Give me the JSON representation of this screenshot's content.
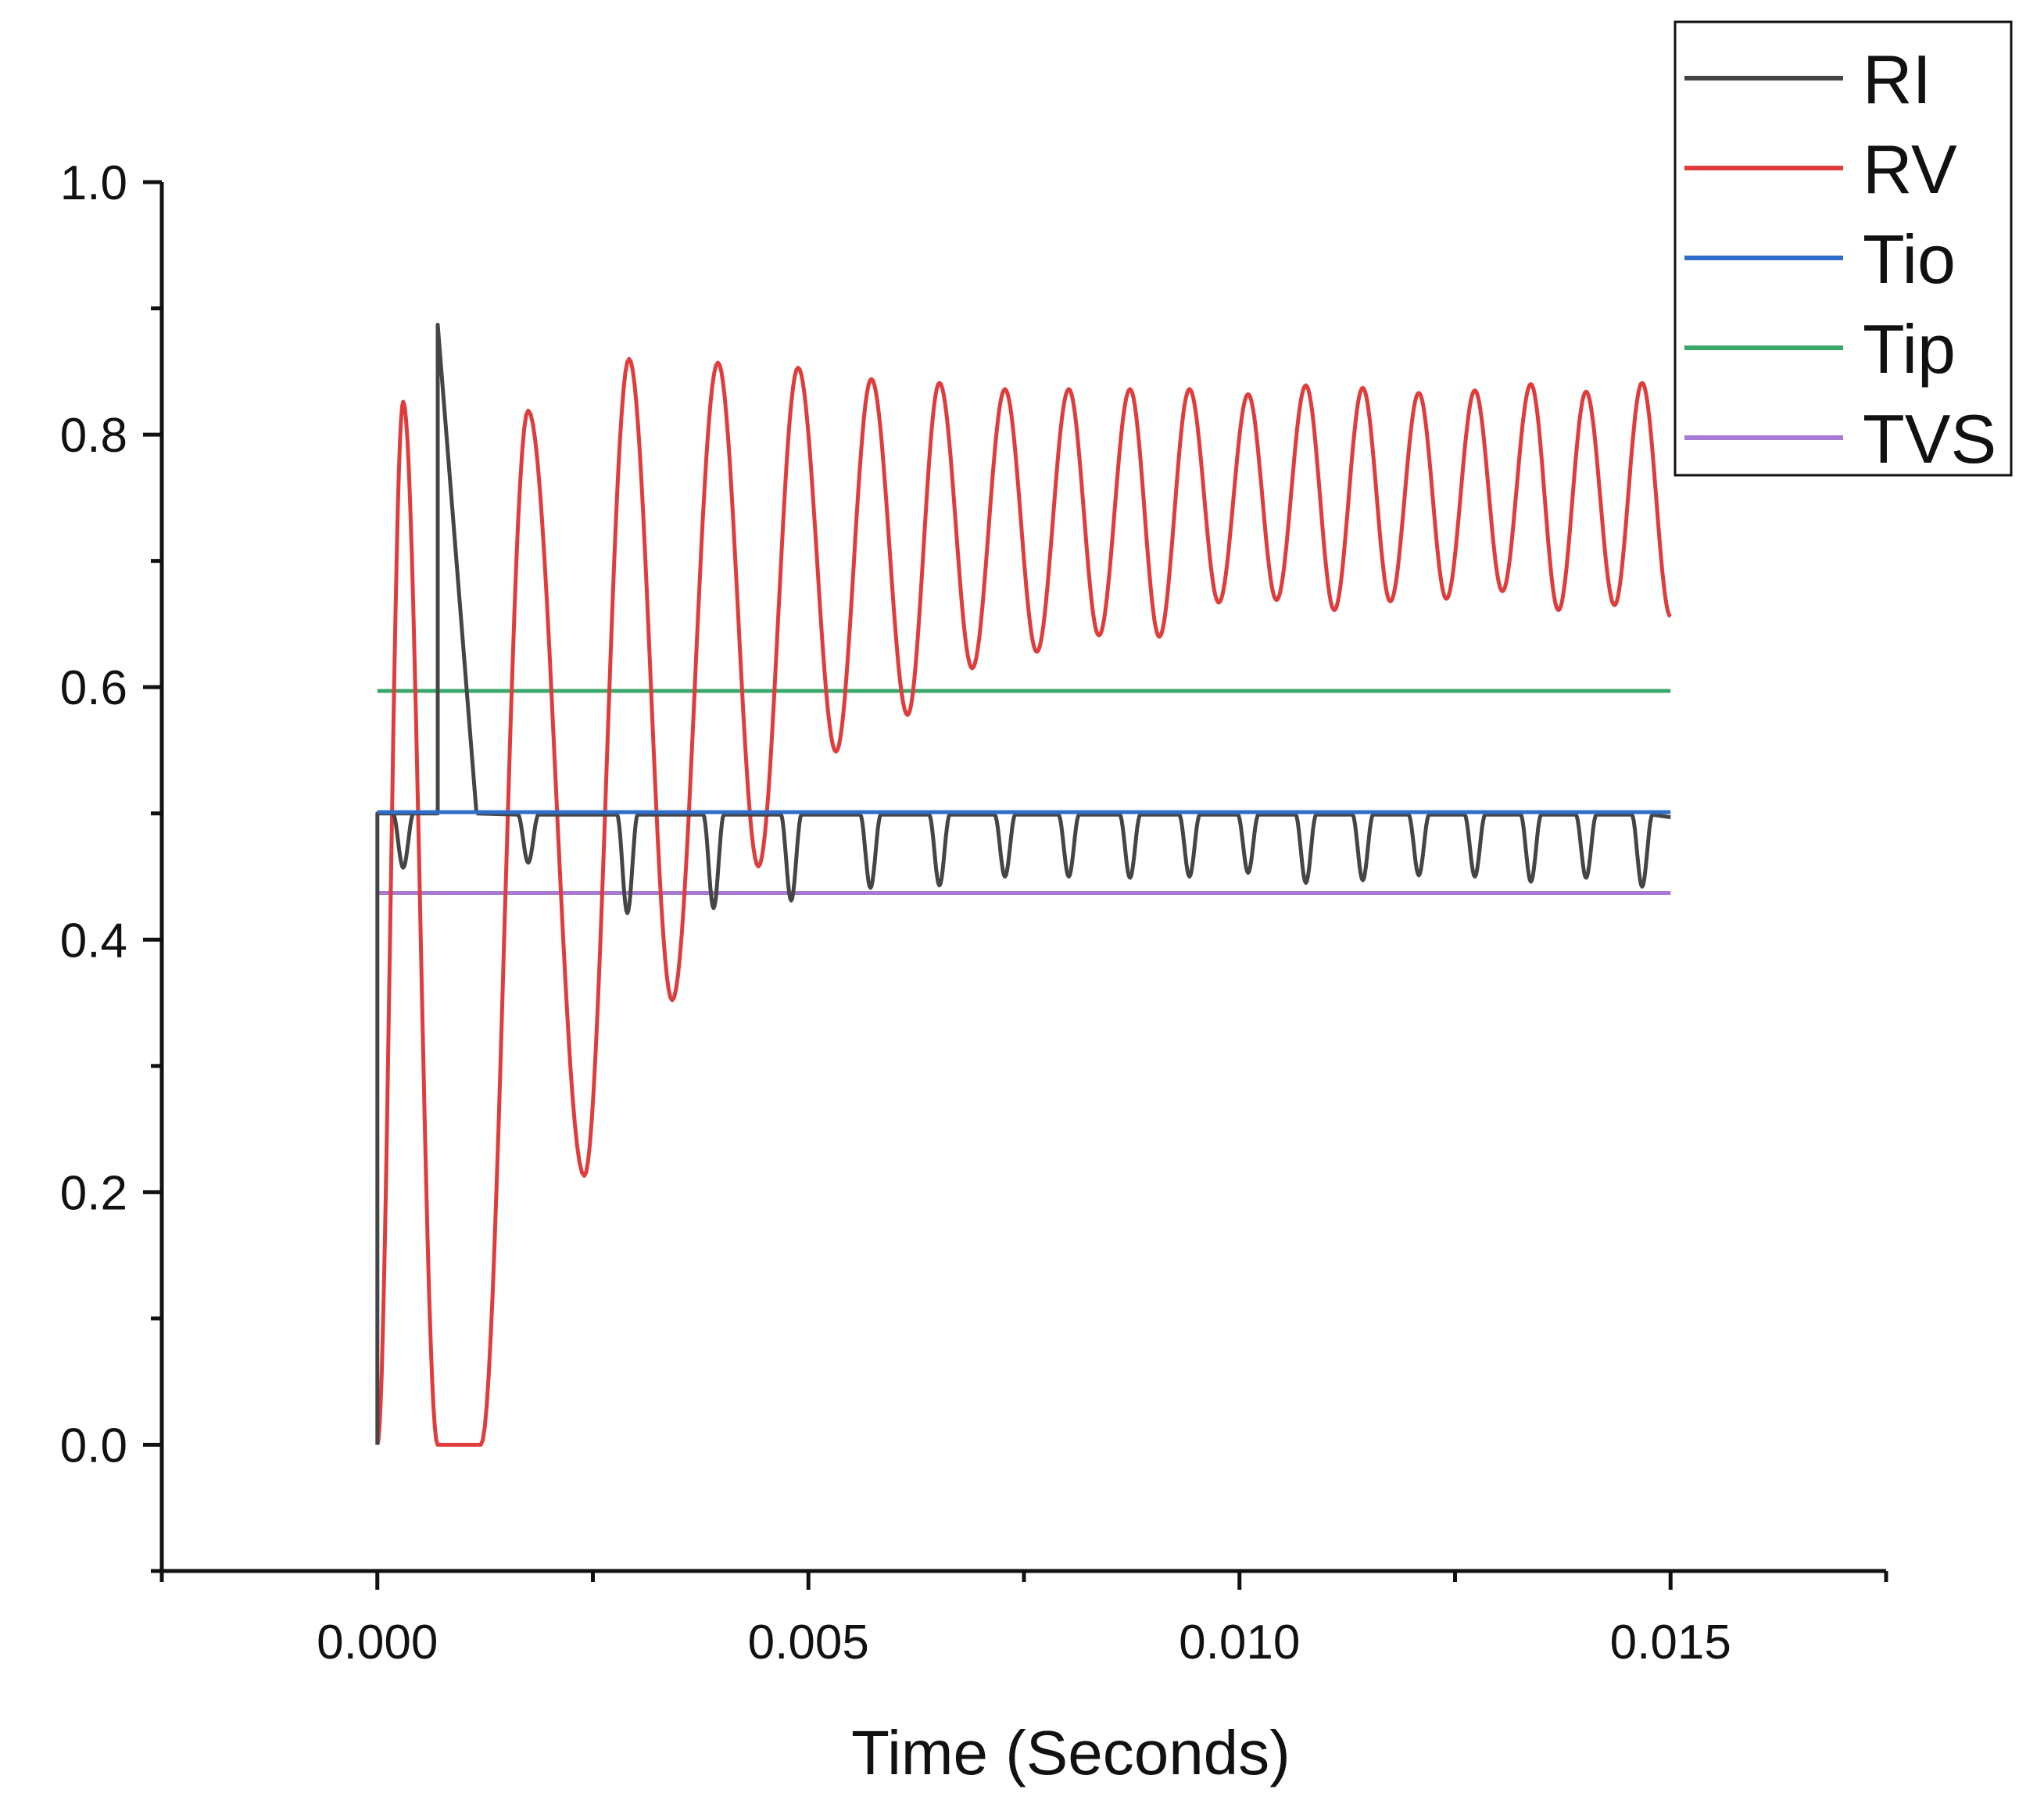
{
  "chart_data": {
    "type": "line",
    "title": "",
    "xlabel": "Time (Seconds)",
    "ylabel": "",
    "xlim": [
      -0.0025,
      0.0175
    ],
    "ylim": [
      -0.1,
      1.0
    ],
    "x_ticks": [
      0.0,
      0.005,
      0.01,
      0.015
    ],
    "x_tick_labels": [
      "0.000",
      "0.005",
      "0.010",
      "0.015"
    ],
    "y_ticks": [
      0.0,
      0.2,
      0.4,
      0.6,
      0.8,
      1.0
    ],
    "y_tick_labels": [
      "0.0",
      "0.2",
      "0.4",
      "0.6",
      "0.8",
      "1.0"
    ],
    "grid": false,
    "legend_position": "top-right",
    "series": [
      {
        "name": "RI",
        "color": "#454545",
        "segments": [
          [
            [
              0.0,
              0.0
            ],
            [
              0.0,
              0.5
            ],
            [
              0.0007,
              0.5
            ],
            [
              0.0007,
              0.887
            ],
            [
              0.00115,
              0.5
            ],
            [
              0.0023,
              0.5
            ],
            [
              0.0024,
              0.5
            ]
          ],
          [
            [
              0.0023,
              0.5
            ],
            [
              0.0035,
              0.498
            ]
          ]
        ],
        "dips": [
          {
            "x": 0.0003,
            "y": 0.457
          },
          {
            "x": 0.00175,
            "y": 0.461
          },
          {
            "x": 0.0029,
            "y": 0.421
          },
          {
            "x": 0.0039,
            "y": 0.425
          },
          {
            "x": 0.0048,
            "y": 0.431
          },
          {
            "x": 0.00572,
            "y": 0.441
          },
          {
            "x": 0.00652,
            "y": 0.443
          },
          {
            "x": 0.00728,
            "y": 0.45
          },
          {
            "x": 0.00802,
            "y": 0.45
          },
          {
            "x": 0.00873,
            "y": 0.449
          },
          {
            "x": 0.00942,
            "y": 0.45
          },
          {
            "x": 0.0101,
            "y": 0.453
          },
          {
            "x": 0.01077,
            "y": 0.445
          },
          {
            "x": 0.01143,
            "y": 0.447
          },
          {
            "x": 0.01208,
            "y": 0.451
          },
          {
            "x": 0.01273,
            "y": 0.45
          },
          {
            "x": 0.01338,
            "y": 0.446
          },
          {
            "x": 0.01402,
            "y": 0.449
          },
          {
            "x": 0.01467,
            "y": 0.442
          }
        ],
        "baseline": 0.499,
        "end": {
          "x": 0.015,
          "y": 0.497
        }
      },
      {
        "name": "RV",
        "color": "#e03c3c",
        "points": [
          [
            0.0,
            0.0
          ],
          [
            0.0003,
            0.826
          ],
          [
            0.0007,
            0.0
          ],
          [
            0.0012,
            0.0
          ],
          [
            0.00175,
            0.819
          ],
          [
            0.0024,
            0.213
          ],
          [
            0.00292,
            0.86
          ],
          [
            0.00342,
            0.352
          ],
          [
            0.00395,
            0.857
          ],
          [
            0.00442,
            0.458
          ],
          [
            0.00488,
            0.853
          ],
          [
            0.00532,
            0.549
          ],
          [
            0.00573,
            0.844
          ],
          [
            0.00615,
            0.578
          ],
          [
            0.00652,
            0.841
          ],
          [
            0.0069,
            0.615
          ],
          [
            0.00728,
            0.836
          ],
          [
            0.00765,
            0.628
          ],
          [
            0.00802,
            0.836
          ],
          [
            0.00837,
            0.641
          ],
          [
            0.00873,
            0.836
          ],
          [
            0.00907,
            0.64
          ],
          [
            0.00942,
            0.836
          ],
          [
            0.00976,
            0.667
          ],
          [
            0.0101,
            0.832
          ],
          [
            0.01043,
            0.669
          ],
          [
            0.01077,
            0.839
          ],
          [
            0.0111,
            0.661
          ],
          [
            0.01143,
            0.837
          ],
          [
            0.01175,
            0.668
          ],
          [
            0.01208,
            0.833
          ],
          [
            0.0124,
            0.67
          ],
          [
            0.01273,
            0.835
          ],
          [
            0.01305,
            0.676
          ],
          [
            0.01338,
            0.84
          ],
          [
            0.0137,
            0.661
          ],
          [
            0.01402,
            0.834
          ],
          [
            0.01435,
            0.665
          ],
          [
            0.01467,
            0.841
          ],
          [
            0.015,
            0.656
          ]
        ]
      },
      {
        "name": "Tio",
        "color": "#2e6dc9",
        "points": [
          [
            0.0,
            0.501
          ],
          [
            0.015,
            0.501
          ]
        ]
      },
      {
        "name": "Tip",
        "color": "#3aa86b",
        "points": [
          [
            0.0,
            0.597
          ],
          [
            0.015,
            0.597
          ]
        ]
      },
      {
        "name": "TVS",
        "color": "#a77bd4",
        "points": [
          [
            0.0,
            0.437
          ],
          [
            0.015,
            0.437
          ]
        ]
      }
    ]
  }
}
